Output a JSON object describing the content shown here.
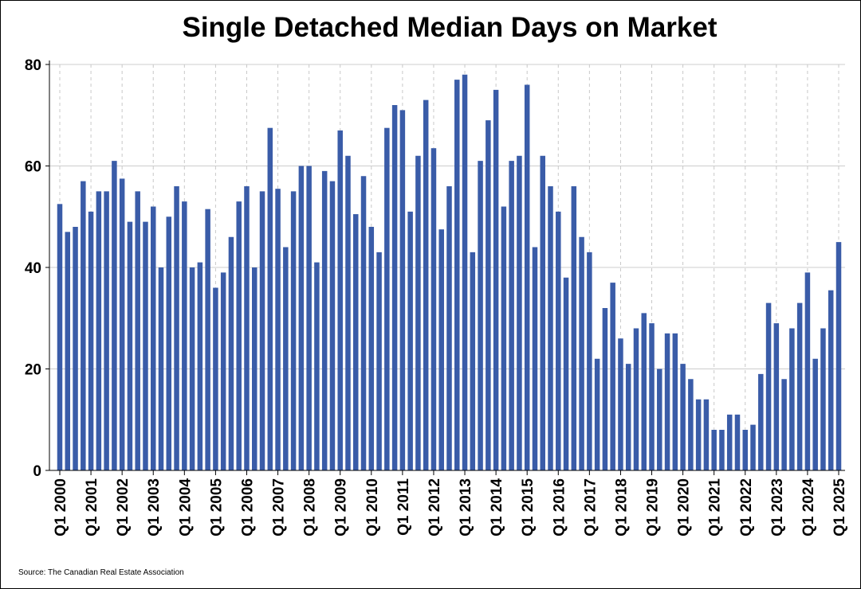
{
  "chart_data": {
    "type": "bar",
    "title": "Single Detached Median Days on Market",
    "source": "Source: The Canadian Real Estate Association",
    "xlabel": "",
    "ylabel": "",
    "ylim": [
      0,
      80
    ],
    "y_ticks": [
      0,
      20,
      40,
      60,
      80
    ],
    "x_tick_labels": [
      "Q1 2000",
      "Q1 2001",
      "Q1 2002",
      "Q1 2003",
      "Q1 2004",
      "Q1 2005",
      "Q1 2006",
      "Q1 2007",
      "Q1 2008",
      "Q1 2009",
      "Q1 2010",
      "Q1 2011",
      "Q1 2012",
      "Q1 2013",
      "Q1 2014",
      "Q1 2015",
      "Q1 2016",
      "Q1 2017",
      "Q1 2018",
      "Q1 2019",
      "Q1 2020",
      "Q1 2021",
      "Q1 2022",
      "Q1 2023",
      "Q1 2024",
      "Q1 2025"
    ],
    "grid": {
      "horizontal": true,
      "vertical_dashed": true
    },
    "bar_color": "#3a5ca8",
    "categories": [
      "Q1 2000",
      "Q2 2000",
      "Q3 2000",
      "Q4 2000",
      "Q1 2001",
      "Q2 2001",
      "Q3 2001",
      "Q4 2001",
      "Q1 2002",
      "Q2 2002",
      "Q3 2002",
      "Q4 2002",
      "Q1 2003",
      "Q2 2003",
      "Q3 2003",
      "Q4 2003",
      "Q1 2004",
      "Q2 2004",
      "Q3 2004",
      "Q4 2004",
      "Q1 2005",
      "Q2 2005",
      "Q3 2005",
      "Q4 2005",
      "Q1 2006",
      "Q2 2006",
      "Q3 2006",
      "Q4 2006",
      "Q1 2007",
      "Q2 2007",
      "Q3 2007",
      "Q4 2007",
      "Q1 2008",
      "Q2 2008",
      "Q3 2008",
      "Q4 2008",
      "Q1 2009",
      "Q2 2009",
      "Q3 2009",
      "Q4 2009",
      "Q1 2010",
      "Q2 2010",
      "Q3 2010",
      "Q4 2010",
      "Q1 2011",
      "Q2 2011",
      "Q3 2011",
      "Q4 2011",
      "Q1 2012",
      "Q2 2012",
      "Q3 2012",
      "Q4 2012",
      "Q1 2013",
      "Q2 2013",
      "Q3 2013",
      "Q4 2013",
      "Q1 2014",
      "Q2 2014",
      "Q3 2014",
      "Q4 2014",
      "Q1 2015",
      "Q2 2015",
      "Q3 2015",
      "Q4 2015",
      "Q1 2016",
      "Q2 2016",
      "Q3 2016",
      "Q4 2016",
      "Q1 2017",
      "Q2 2017",
      "Q3 2017",
      "Q4 2017",
      "Q1 2018",
      "Q2 2018",
      "Q3 2018",
      "Q4 2018",
      "Q1 2019",
      "Q2 2019",
      "Q3 2019",
      "Q4 2019",
      "Q1 2020",
      "Q2 2020",
      "Q3 2020",
      "Q4 2020",
      "Q1 2021",
      "Q2 2021",
      "Q3 2021",
      "Q4 2021",
      "Q1 2022",
      "Q2 2022",
      "Q3 2022",
      "Q4 2022",
      "Q1 2023",
      "Q2 2023",
      "Q3 2023",
      "Q4 2023",
      "Q1 2024",
      "Q2 2024",
      "Q3 2024",
      "Q4 2024",
      "Q1 2025"
    ],
    "values": [
      52.5,
      47,
      48,
      57,
      51,
      55,
      55,
      61,
      57.5,
      49,
      55,
      49,
      52,
      40,
      50,
      56,
      53,
      40,
      41,
      51.5,
      36,
      39,
      46,
      53,
      56,
      40,
      55,
      67.5,
      55.5,
      44,
      55,
      60,
      60,
      41,
      59,
      57,
      67,
      62,
      50.5,
      58,
      48,
      43,
      67.5,
      72,
      71,
      51,
      62,
      73,
      63.5,
      47.5,
      56,
      77,
      78,
      43,
      61,
      69,
      75,
      52,
      61,
      62,
      76,
      44,
      62,
      56,
      51,
      38,
      56,
      46,
      43,
      22,
      32,
      37,
      26,
      21,
      28,
      31,
      29,
      20,
      27,
      27,
      21,
      18,
      14,
      14,
      8,
      8,
      11,
      11,
      8,
      9,
      19,
      33,
      29,
      18,
      28,
      33,
      39,
      22,
      28,
      35.5,
      45
    ]
  }
}
